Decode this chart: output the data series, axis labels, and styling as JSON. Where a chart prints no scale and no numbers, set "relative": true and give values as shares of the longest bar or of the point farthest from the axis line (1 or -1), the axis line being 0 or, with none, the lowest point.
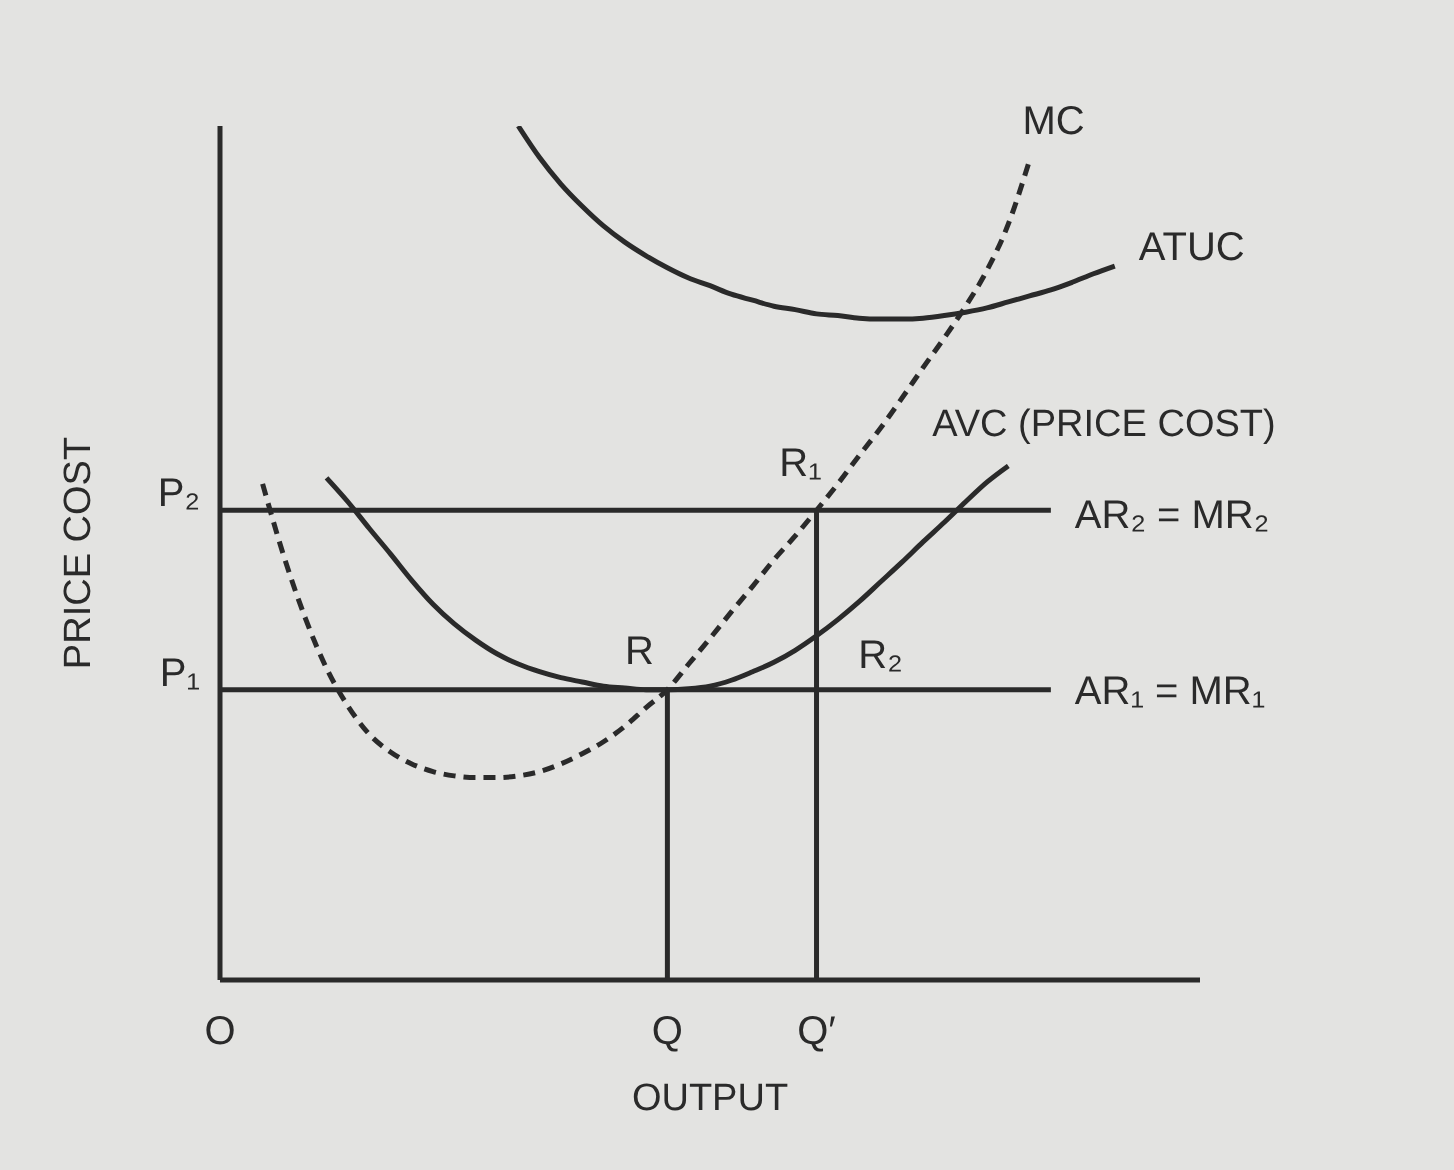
{
  "chart_data": {
    "type": "line",
    "relative": true,
    "xlabel": "OUTPUT",
    "ylabel": "PRICE COST",
    "marker": "none",
    "line_style": "solid",
    "categories": [
      "O",
      null,
      null,
      null,
      null,
      null,
      null,
      null,
      null,
      null,
      null,
      null,
      null,
      null,
      null,
      null,
      null,
      null,
      null,
      null,
      null,
      "Q",
      null,
      null,
      null,
      null,
      null,
      null,
      "Q′",
      null,
      null,
      null,
      null,
      null,
      null,
      null,
      null,
      null,
      null,
      null,
      null,
      null,
      null,
      null,
      null,
      null,
      null
    ],
    "series": [
      {
        "name": "MC",
        "color": "#2a2a2a",
        "line_style": "dashed",
        "values": [
          null,
          null,
          0.581,
          0.496,
          0.424,
          0.365,
          0.321,
          0.288,
          0.267,
          0.253,
          0.244,
          0.239,
          0.237,
          0.237,
          0.239,
          0.244,
          0.253,
          0.265,
          0.279,
          0.297,
          0.319,
          0.34,
          0.37,
          0.4,
          0.431,
          0.461,
          0.492,
          0.52,
          0.55,
          0.581,
          0.614,
          0.646,
          0.681,
          0.717,
          0.752,
          0.789,
          0.831,
          0.885,
          0.96,
          null,
          null,
          null,
          null,
          null,
          null,
          null,
          null
        ]
      },
      {
        "name": "ATUC",
        "color": "#2a2a2a",
        "values": [
          null,
          null,
          null,
          null,
          null,
          null,
          null,
          null,
          null,
          null,
          null,
          null,
          null,
          null,
          1.0,
          0.963,
          0.932,
          0.906,
          0.883,
          0.864,
          0.848,
          0.834,
          0.822,
          0.813,
          0.803,
          0.796,
          0.789,
          0.785,
          0.78,
          0.778,
          0.775,
          0.774,
          0.774,
          0.775,
          0.778,
          0.782,
          0.787,
          0.794,
          0.801,
          0.808,
          0.817,
          0.827,
          0.836,
          null,
          null,
          null,
          null
        ]
      },
      {
        "name": "AVC (PRICE COST)",
        "color": "#2a2a2a",
        "values": [
          null,
          null,
          null,
          null,
          null,
          0.588,
          0.56,
          0.529,
          0.499,
          0.468,
          0.44,
          0.417,
          0.398,
          0.382,
          0.37,
          0.361,
          0.354,
          0.349,
          0.344,
          0.342,
          0.34,
          0.34,
          0.341,
          0.344,
          0.351,
          0.361,
          0.372,
          0.386,
          0.403,
          0.422,
          0.443,
          0.466,
          0.489,
          0.513,
          0.536,
          0.56,
          0.583,
          0.602,
          null,
          null,
          null,
          null,
          null,
          null,
          null,
          null,
          null
        ]
      },
      {
        "name": "AR₂ = MR₂",
        "color": "#2a2a2a",
        "values": [
          0.55,
          0.55,
          0.55,
          0.55,
          0.55,
          0.55,
          0.55,
          0.55,
          0.55,
          0.55,
          0.55,
          0.55,
          0.55,
          0.55,
          0.55,
          0.55,
          0.55,
          0.55,
          0.55,
          0.55,
          0.55,
          0.55,
          0.55,
          0.55,
          0.55,
          0.55,
          0.55,
          0.55,
          0.55,
          0.55,
          0.55,
          0.55,
          0.55,
          0.55,
          0.55,
          0.55,
          0.55,
          0.55,
          0.55,
          0.55,
          null,
          null,
          null,
          null,
          null,
          null,
          null
        ]
      },
      {
        "name": "AR₁ = MR₁",
        "color": "#2a2a2a",
        "values": [
          0.34,
          0.34,
          0.34,
          0.34,
          0.34,
          0.34,
          0.34,
          0.34,
          0.34,
          0.34,
          0.34,
          0.34,
          0.34,
          0.34,
          0.34,
          0.34,
          0.34,
          0.34,
          0.34,
          0.34,
          0.34,
          0.34,
          0.34,
          0.34,
          0.34,
          0.34,
          0.34,
          0.34,
          0.34,
          0.34,
          0.34,
          0.34,
          0.34,
          0.34,
          0.34,
          0.34,
          0.34,
          0.34,
          0.34,
          0.34,
          null,
          null,
          null,
          null,
          null,
          null,
          null
        ]
      },
      {
        "color": "#2a2a2a",
        "x": [
          "Q",
          "Q"
        ],
        "values": [
          0,
          0.34
        ]
      },
      {
        "color": "#2a2a2a",
        "x": [
          "Q′",
          "Q′"
        ],
        "values": [
          0,
          0.55
        ]
      }
    ],
    "annotations": [
      {
        "text": "P₂",
        "x": "O",
        "y": 0.55
      },
      {
        "text": "P₁",
        "x": "O",
        "y": 0.34
      },
      {
        "text": "R",
        "x": "Q",
        "y": 0.34
      },
      {
        "text": "R₁",
        "x": "Q′",
        "y": 0.55
      },
      {
        "text": "R₂",
        "x": "Q′",
        "y": 0.403
      }
    ]
  }
}
